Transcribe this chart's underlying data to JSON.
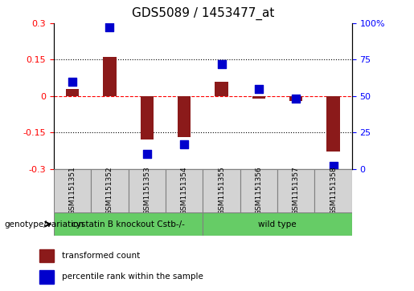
{
  "title": "GDS5089 / 1453477_at",
  "samples": [
    "GSM1151351",
    "GSM1151352",
    "GSM1151353",
    "GSM1151354",
    "GSM1151355",
    "GSM1151356",
    "GSM1151357",
    "GSM1151358"
  ],
  "red_values": [
    0.03,
    0.16,
    -0.18,
    -0.17,
    0.06,
    -0.01,
    -0.02,
    -0.23
  ],
  "blue_values": [
    60,
    97,
    10,
    17,
    72,
    55,
    48,
    2
  ],
  "ylim_left": [
    -0.3,
    0.3
  ],
  "ylim_right": [
    0,
    100
  ],
  "yticks_left": [
    -0.3,
    -0.15,
    0,
    0.15,
    0.3
  ],
  "yticks_right": [
    0,
    25,
    50,
    75,
    100
  ],
  "ytick_labels_left": [
    "-0.3",
    "-0.15",
    "0",
    "0.15",
    "0.3"
  ],
  "ytick_labels_right": [
    "0",
    "25",
    "50",
    "75",
    "100%"
  ],
  "hlines": [
    0.15,
    0.0,
    -0.15
  ],
  "hline_styles": [
    "dotted",
    "dashed",
    "dotted"
  ],
  "hline_colors": [
    "black",
    "red",
    "black"
  ],
  "bar_color": "#8B1A1A",
  "dot_color": "#0000CD",
  "group1_label": "cystatin B knockout Cstb-/-",
  "group2_label": "wild type",
  "group1_indices": [
    0,
    1,
    2,
    3
  ],
  "group2_indices": [
    4,
    5,
    6,
    7
  ],
  "group_color": "#66CC66",
  "genotype_label": "genotype/variation",
  "legend1_label": "transformed count",
  "legend2_label": "percentile rank within the sample",
  "bar_width": 0.35,
  "dot_size": 50,
  "label_box_color": "#D3D3D3"
}
